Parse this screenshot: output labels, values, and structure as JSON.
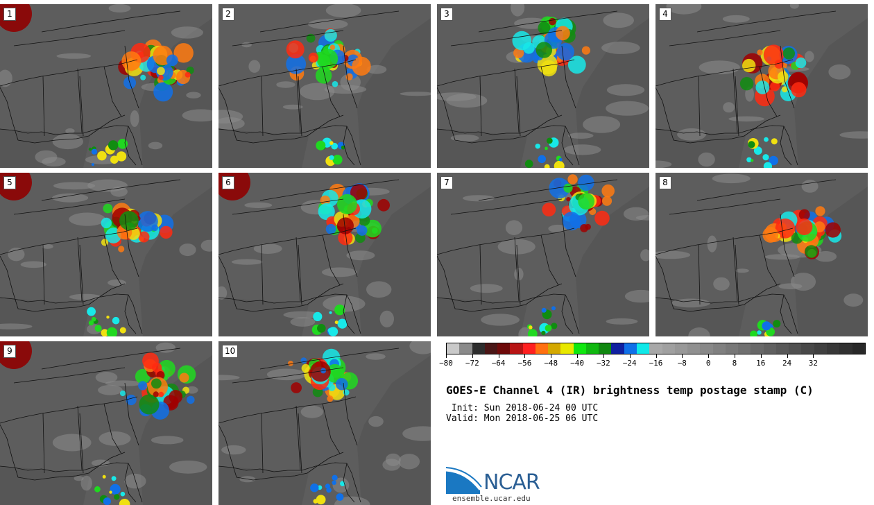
{
  "panels": [
    {
      "label": "1"
    },
    {
      "label": "2"
    },
    {
      "label": "3"
    },
    {
      "label": "4"
    },
    {
      "label": "5"
    },
    {
      "label": "6"
    },
    {
      "label": "7"
    },
    {
      "label": "8"
    },
    {
      "label": "9"
    },
    {
      "label": "10"
    }
  ],
  "colorbar": {
    "colors": [
      "#c9c9c9",
      "#8a8a8a",
      "#2d2d2d",
      "#4a1616",
      "#6e0a0a",
      "#b81414",
      "#ff2020",
      "#ff7010",
      "#d4a800",
      "#e8e800",
      "#10e810",
      "#10b810",
      "#108810",
      "#1020a0",
      "#1070e8",
      "#10e8e8",
      "#a8a8a8",
      "#a0a0a0",
      "#989898",
      "#909090",
      "#888888",
      "#808080",
      "#787878",
      "#707070",
      "#686868",
      "#606060",
      "#585858",
      "#505050",
      "#484848",
      "#404040",
      "#383838",
      "#303030",
      "#282828"
    ],
    "ticks": [
      "−80",
      "−72",
      "−64",
      "−56",
      "−48",
      "−40",
      "−32",
      "−24",
      "−16",
      "−8",
      "0",
      "8",
      "16",
      "24",
      "32"
    ]
  },
  "title": "GOES-E Channel 4 (IR) brightness temp postage stamp (C)",
  "init": " Init: Sun 2018-06-24 00 UTC",
  "valid": "Valid: Mon 2018-06-25 06 UTC",
  "logo": {
    "text": "NCAR",
    "url": "ensemble.ucar.edu"
  }
}
